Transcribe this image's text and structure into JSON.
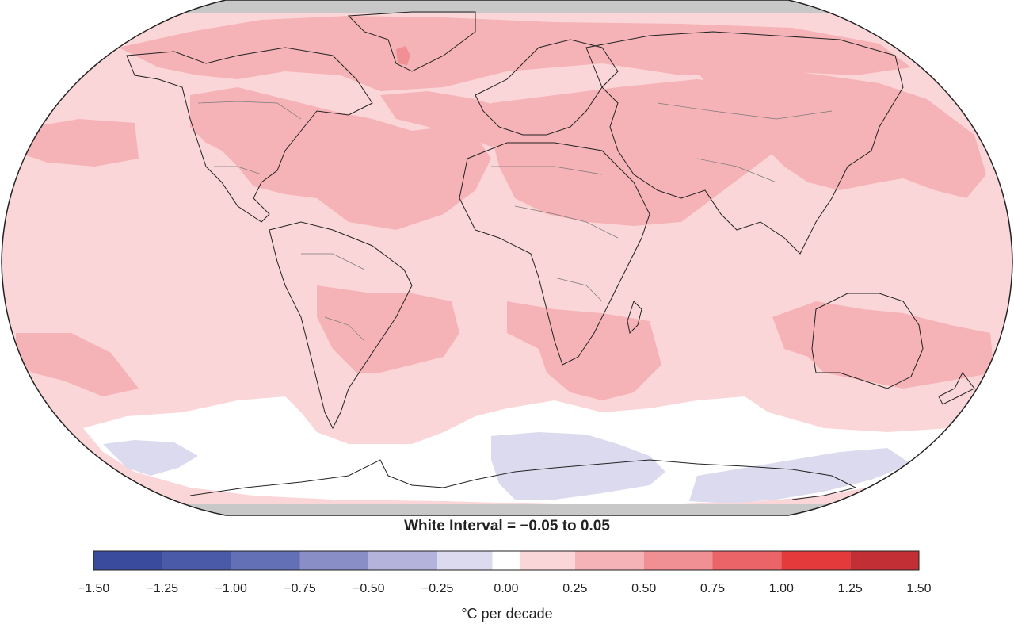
{
  "map": {
    "projection": "robinson",
    "ocean_fill": "#fbd6d8",
    "polar_fill": "#c8c8c9",
    "outline_color": "#222222",
    "border_color": "#7a7a7a",
    "regions": [
      {
        "name": "warm-arctic",
        "category": "0.25 to 0.50"
      },
      {
        "name": "warm-north-america",
        "category": "0.25 to 0.50"
      },
      {
        "name": "warm-north-atlantic",
        "category": "0.25 to 0.50"
      },
      {
        "name": "warm-eurasia",
        "category": "0.25 to 0.50"
      },
      {
        "name": "warm-east-asia",
        "category": "0.25 to 0.50"
      },
      {
        "name": "warm-south-atlantic",
        "category": "0.25 to 0.50"
      },
      {
        "name": "warm-south-indian",
        "category": "0.25 to 0.50"
      },
      {
        "name": "warm-australia",
        "category": "0.25 to 0.50"
      },
      {
        "name": "warm-south-pacific",
        "category": "0.25 to 0.50"
      },
      {
        "name": "hotspot-greenland",
        "category": "0.50 to 0.75"
      },
      {
        "name": "neutral-southern-ocean",
        "category": "-0.05 to 0.05"
      },
      {
        "name": "cooling-southern-ocean",
        "category": "-0.25 to -0.05"
      }
    ]
  },
  "white_interval_label": "White Interval = −0.05 to 0.05",
  "colorbar": {
    "ticks": [
      "−1.50",
      "−1.25",
      "−1.00",
      "−0.75",
      "−0.50",
      "−0.25",
      "0.00",
      "0.25",
      "0.50",
      "0.75",
      "1.00",
      "1.25",
      "1.50"
    ],
    "bins": [
      {
        "from": -1.5,
        "to": -1.25,
        "color": "#3a4a9c"
      },
      {
        "from": -1.25,
        "to": -1.0,
        "color": "#4a5aa8"
      },
      {
        "from": -1.0,
        "to": -0.75,
        "color": "#6470b6"
      },
      {
        "from": -0.75,
        "to": -0.5,
        "color": "#8a8ec6"
      },
      {
        "from": -0.5,
        "to": -0.25,
        "color": "#b4b3dc"
      },
      {
        "from": -0.25,
        "to": -0.05,
        "color": "#dcdaef"
      },
      {
        "from": -0.05,
        "to": 0.05,
        "color": "#ffffff"
      },
      {
        "from": 0.05,
        "to": 0.25,
        "color": "#fbd6d8"
      },
      {
        "from": 0.25,
        "to": 0.5,
        "color": "#f6b3b7"
      },
      {
        "from": 0.5,
        "to": 0.75,
        "color": "#f08f94"
      },
      {
        "from": 0.75,
        "to": 1.0,
        "color": "#ea6468"
      },
      {
        "from": 1.0,
        "to": 1.25,
        "color": "#e43a3c"
      },
      {
        "from": 1.25,
        "to": 1.5,
        "color": "#c23036"
      }
    ],
    "unit_label": "°C per decade"
  }
}
